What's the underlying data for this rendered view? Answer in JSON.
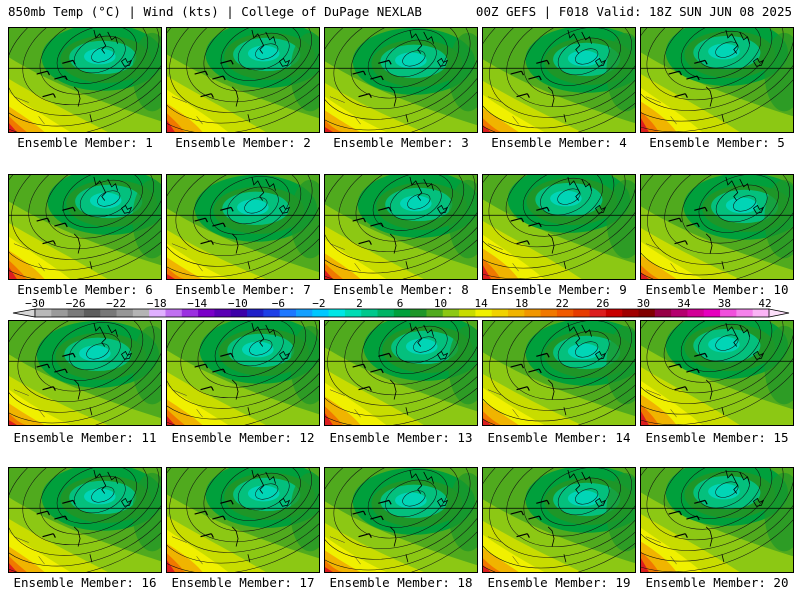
{
  "header": {
    "left": "850mb Temp (°C) | Wind (kts) | College of DuPage NEXLAB",
    "right": "00Z GEFS | F018 Valid: 18Z SUN JUN 08 2025"
  },
  "members": [
    {
      "label": "Ensemble Member: 1",
      "variant": 0
    },
    {
      "label": "Ensemble Member: 2",
      "variant": 1
    },
    {
      "label": "Ensemble Member: 3",
      "variant": 2
    },
    {
      "label": "Ensemble Member: 4",
      "variant": 3
    },
    {
      "label": "Ensemble Member: 5",
      "variant": 4
    },
    {
      "label": "Ensemble Member: 6",
      "variant": 1
    },
    {
      "label": "Ensemble Member: 7",
      "variant": 2
    },
    {
      "label": "Ensemble Member: 8",
      "variant": 0
    },
    {
      "label": "Ensemble Member: 9",
      "variant": 4
    },
    {
      "label": "Ensemble Member: 10",
      "variant": 3
    },
    {
      "label": "Ensemble Member: 11",
      "variant": 2
    },
    {
      "label": "Ensemble Member: 12",
      "variant": 0
    },
    {
      "label": "Ensemble Member: 13",
      "variant": 1
    },
    {
      "label": "Ensemble Member: 14",
      "variant": 3
    },
    {
      "label": "Ensemble Member: 15",
      "variant": 4
    },
    {
      "label": "Ensemble Member: 16",
      "variant": 0
    },
    {
      "label": "Ensemble Member: 17",
      "variant": 1
    },
    {
      "label": "Ensemble Member: 18",
      "variant": 2
    },
    {
      "label": "Ensemble Member: 19",
      "variant": 3
    },
    {
      "label": "Ensemble Member: 20",
      "variant": 4
    }
  ],
  "colorbar": {
    "ticks": [
      "-30",
      "-26",
      "-22",
      "-18",
      "-14",
      "-10",
      "-6",
      "-2",
      "2",
      "6",
      "10",
      "14",
      "18",
      "22",
      "26",
      "30",
      "34",
      "38",
      "42"
    ],
    "colors": [
      "#b9b9b9",
      "#9a9a9a",
      "#7a7a7a",
      "#5e5e5e",
      "#787878",
      "#969696",
      "#b4b4b4",
      "#e0b0ff",
      "#c070f0",
      "#9b30e0",
      "#7a00c8",
      "#5a00b4",
      "#3c00a8",
      "#2020c8",
      "#1e40e6",
      "#1e78ff",
      "#14a0ff",
      "#00c8ff",
      "#00e6e6",
      "#00dcb4",
      "#00c88c",
      "#00b464",
      "#00a03c",
      "#1e9628",
      "#50aa1e",
      "#8cc814",
      "#c8dc00",
      "#f0f000",
      "#f0d200",
      "#f0b400",
      "#f09600",
      "#f07800",
      "#f05a00",
      "#e63c00",
      "#dc1e1e",
      "#c80000",
      "#a00000",
      "#800000",
      "#960046",
      "#b4006e",
      "#d20096",
      "#e600be",
      "#f050dc",
      "#f582eb",
      "#fab4f5"
    ]
  },
  "map_colors": {
    "temp_2": "#00e6e6",
    "temp_6": "#00c88c",
    "temp_8": "#00a03c",
    "temp_10": "#1e9628",
    "temp_12": "#50aa1e",
    "temp_14": "#8cc814",
    "temp_16": "#c8dc00",
    "temp_18": "#f0f000",
    "temp_20": "#f0b400",
    "temp_22": "#f07800",
    "temp_24": "#e63c00",
    "temp_26": "#dc1e1e"
  }
}
